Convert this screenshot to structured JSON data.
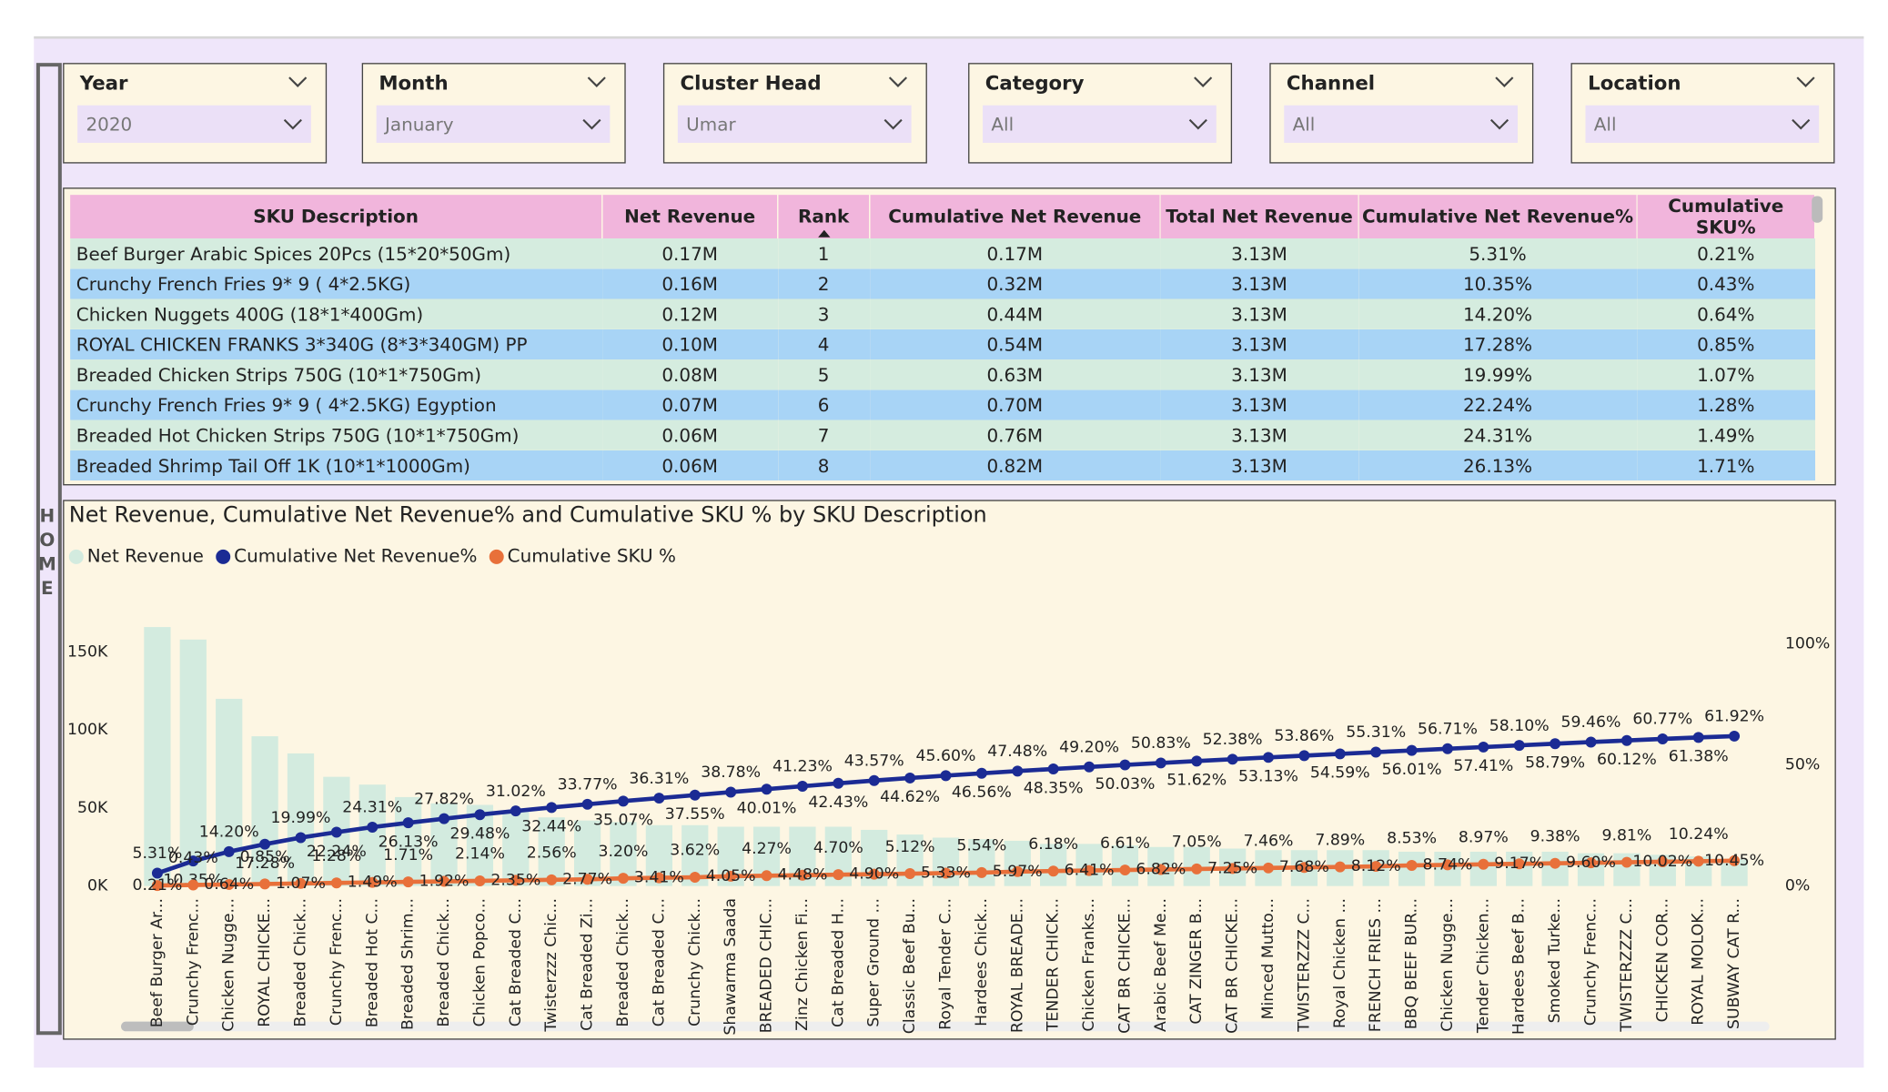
{
  "nav": {
    "label": "HOME"
  },
  "filters": [
    {
      "label": "Year",
      "value": "2020"
    },
    {
      "label": "Month",
      "value": "January"
    },
    {
      "label": "Cluster Head",
      "value": "Umar"
    },
    {
      "label": "Category",
      "value": "All"
    },
    {
      "label": "Channel",
      "value": "All"
    },
    {
      "label": "Location",
      "value": "All"
    }
  ],
  "table": {
    "columns": [
      "SKU Description",
      "Net Revenue",
      "Rank",
      "Cumulative Net Revenue",
      "Total Net Revenue",
      "Cumulative Net Revenue%",
      "Cumulative SKU%"
    ],
    "rows": [
      [
        "Beef Burger Arabic Spices 20Pcs (15*20*50Gm)",
        "0.17M",
        "1",
        "0.17M",
        "3.13M",
        "5.31%",
        "0.21%"
      ],
      [
        "Crunchy French Fries 9* 9 ( 4*2.5KG)",
        "0.16M",
        "2",
        "0.32M",
        "3.13M",
        "10.35%",
        "0.43%"
      ],
      [
        "Chicken Nuggets 400G (18*1*400Gm)",
        "0.12M",
        "3",
        "0.44M",
        "3.13M",
        "14.20%",
        "0.64%"
      ],
      [
        "ROYAL CHICKEN FRANKS 3*340G (8*3*340GM) PP",
        "0.10M",
        "4",
        "0.54M",
        "3.13M",
        "17.28%",
        "0.85%"
      ],
      [
        "Breaded Chicken Strips 750G (10*1*750Gm)",
        "0.08M",
        "5",
        "0.63M",
        "3.13M",
        "19.99%",
        "1.07%"
      ],
      [
        "Crunchy French Fries 9* 9 ( 4*2.5KG) Egyption",
        "0.07M",
        "6",
        "0.70M",
        "3.13M",
        "22.24%",
        "1.28%"
      ],
      [
        "Breaded Hot Chicken Strips 750G (10*1*750Gm)",
        "0.06M",
        "7",
        "0.76M",
        "3.13M",
        "24.31%",
        "1.49%"
      ],
      [
        "Breaded Shrimp Tail Off 1K (10*1*1000Gm)",
        "0.06M",
        "8",
        "0.82M",
        "3.13M",
        "26.13%",
        "1.71%"
      ]
    ]
  },
  "chart_data": {
    "type": "combo",
    "title": "Net Revenue, Cumulative Net Revenue% and Cumulative SKU % by SKU Description",
    "categories": [
      "Beef Burger Ar...",
      "Crunchy Frenc...",
      "Chicken Nugge...",
      "ROYAL CHICKE...",
      "Breaded Chick...",
      "Crunchy Frenc...",
      "Breaded Hot C...",
      "Breaded Shrim...",
      "Breaded Chick...",
      "Chicken Popco...",
      "Cat Breaded C...",
      "Twisterzzz Chic...",
      "Cat Breaded Zi...",
      "Breaded Chick...",
      "Cat Breaded C...",
      "Crunchy Chick...",
      "Shawarma Saada",
      "BREADED CHIC...",
      "Zinz Chicken Fi...",
      "Cat Breaded H...",
      "Super Ground ...",
      "Classic Beef Bu...",
      "Royal Tender C...",
      "Hardees Chick...",
      "ROYAL BREADE...",
      "TENDER CHICK...",
      "Chicken Franks...",
      "CAT BR CHICKE...",
      "Arabic Beef Me...",
      "CAT ZINGER B...",
      "CAT BR CHICKE...",
      "Minced Mutto...",
      "TWISTERZZZ C...",
      "Royal Chicken ...",
      "FRENCH FRIES ...",
      "BBQ BEEF BUR...",
      "Chicken Nugge...",
      "Tender Chicken...",
      "Hardees Beef B...",
      "Smoked Turke...",
      "Crunchy Frenc...",
      "TWISTERZZZ C...",
      "CHICKEN COR...",
      "ROYAL MOLOK...",
      "SUBWAY CAT R..."
    ],
    "series": [
      {
        "name": "Net Revenue",
        "type": "bar",
        "color": "#d3ebdf",
        "values": [
          166000,
          158000,
          120000,
          96000,
          85000,
          70000,
          65000,
          57000,
          53000,
          52000,
          48000,
          44000,
          42000,
          41000,
          39000,
          39000,
          38000,
          38000,
          38000,
          38000,
          36000,
          33000,
          31000,
          30000,
          29000,
          27000,
          27000,
          26000,
          25000,
          25000,
          24000,
          23000,
          23000,
          23000,
          23000,
          22000,
          22000,
          22000,
          22000,
          22000,
          21000,
          21000,
          20000,
          19000,
          17000
        ]
      },
      {
        "name": "Cumulative Net Revenue%",
        "type": "line",
        "axis": "y2",
        "color": "#1b2b94",
        "values": [
          5.31,
          10.35,
          14.2,
          17.28,
          19.99,
          22.24,
          24.31,
          26.13,
          27.82,
          29.48,
          31.02,
          32.44,
          33.77,
          35.07,
          36.31,
          37.55,
          38.78,
          40.01,
          41.23,
          42.43,
          43.57,
          44.62,
          45.6,
          46.56,
          47.48,
          48.35,
          49.2,
          50.03,
          50.83,
          51.62,
          52.38,
          53.13,
          53.86,
          54.59,
          55.31,
          56.01,
          56.71,
          57.41,
          58.1,
          58.79,
          59.46,
          60.12,
          60.77,
          61.38,
          61.92
        ],
        "value_labels": [
          "5.31%",
          "10.35%",
          "14.20%",
          "17.28%",
          "19.99%",
          "22.24%",
          "24.31%",
          "26.13%",
          "27.82%",
          "29.48%",
          "31.02%",
          "32.44%",
          "33.77%",
          "35.07%",
          "36.31%",
          "37.55%",
          "38.78%",
          "40.01%",
          "41.23%",
          "42.43%",
          "43.57%",
          "44.62%",
          "45.60%",
          "46.56%",
          "47.48%",
          "48.35%",
          "49.20%",
          "50.03%",
          "50.83%",
          "51.62%",
          "52.38%",
          "53.13%",
          "53.86%",
          "54.59%",
          "55.31%",
          "56.01%",
          "56.71%",
          "57.41%",
          "58.10%",
          "58.79%",
          "59.46%",
          "60.12%",
          "60.77%",
          "61.38%",
          "61.92%"
        ]
      },
      {
        "name": "Cumulative SKU %",
        "type": "line",
        "axis": "y2",
        "color": "#e8703a",
        "values": [
          0.21,
          0.43,
          0.64,
          0.85,
          1.07,
          1.28,
          1.49,
          1.71,
          1.92,
          2.14,
          2.35,
          2.56,
          2.77,
          3.2,
          3.41,
          3.62,
          4.05,
          4.27,
          4.48,
          4.7,
          4.9,
          5.12,
          5.33,
          5.54,
          5.97,
          6.18,
          6.41,
          6.61,
          6.82,
          7.05,
          7.25,
          7.46,
          7.68,
          7.89,
          8.12,
          8.53,
          8.74,
          8.97,
          9.17,
          9.38,
          9.6,
          9.81,
          10.02,
          10.24,
          10.45
        ],
        "value_labels": [
          "0.21%",
          "0.43%",
          "0.64%",
          "0.85%",
          "1.07%",
          "1.28%",
          "1.49%",
          "1.71%",
          "1.92%",
          "2.14%",
          "2.35%",
          "2.56%",
          "2.77%",
          "3.20%",
          "3.41%",
          "3.62%",
          "4.05%",
          "4.27%",
          "4.48%",
          "4.70%",
          "4.90%",
          "5.12%",
          "5.33%",
          "5.54%",
          "5.97%",
          "6.18%",
          "6.41%",
          "6.61%",
          "6.82%",
          "7.05%",
          "7.25%",
          "7.46%",
          "7.68%",
          "7.89%",
          "8.12%",
          "8.53%",
          "8.74%",
          "8.97%",
          "9.17%",
          "9.38%",
          "9.60%",
          "9.81%",
          "10.02%",
          "10.24%",
          "10.45%"
        ]
      }
    ],
    "ylim": [
      0,
      180000
    ],
    "yticks": [
      {
        "value": 0,
        "label": "0K"
      },
      {
        "value": 50000,
        "label": "50K"
      },
      {
        "value": 100000,
        "label": "100K"
      },
      {
        "value": 150000,
        "label": "150K"
      }
    ],
    "y2lim": [
      0,
      116
    ],
    "y2ticks": [
      {
        "value": 0,
        "label": "0%"
      },
      {
        "value": 50,
        "label": "50%"
      },
      {
        "value": 100,
        "label": "100%"
      }
    ],
    "grid": false,
    "legend": "top-left"
  }
}
